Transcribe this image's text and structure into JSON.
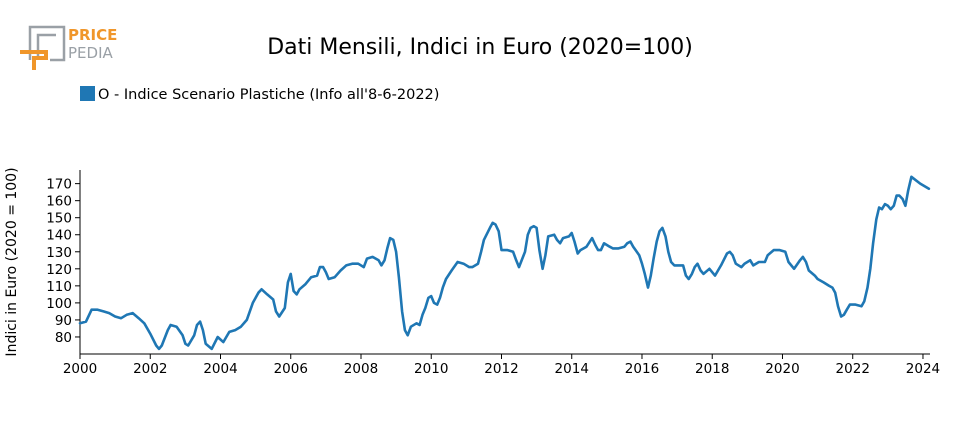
{
  "logo": {
    "line1": "PRICE",
    "line2": "PEDIA",
    "color_orange": "#f0962a",
    "color_gray": "#9aa0a6"
  },
  "chart_data": {
    "type": "line",
    "title": "Dati Mensili, Indici in Euro (2020=100)",
    "ylabel": "Indici in Euro (2020 = 100)",
    "xlabel": "",
    "legend": {
      "placement": "top-left"
    },
    "grid": false,
    "xlim": [
      2000,
      2024.2
    ],
    "ylim": [
      70,
      178
    ],
    "x_ticks": [
      2000,
      2002,
      2004,
      2006,
      2008,
      2010,
      2012,
      2014,
      2016,
      2018,
      2020,
      2022,
      2024
    ],
    "y_ticks": [
      80,
      90,
      100,
      110,
      120,
      130,
      140,
      150,
      160,
      170
    ],
    "series": [
      {
        "name": "O - Indice Scenario Plastiche (Info all'8-6-2022)",
        "color": "#1f77b4",
        "points": [
          [
            2000.0,
            88
          ],
          [
            2000.17,
            89
          ],
          [
            2000.33,
            96
          ],
          [
            2000.5,
            96
          ],
          [
            2000.67,
            95
          ],
          [
            2000.83,
            94
          ],
          [
            2001.0,
            92
          ],
          [
            2001.17,
            91
          ],
          [
            2001.33,
            93
          ],
          [
            2001.5,
            94
          ],
          [
            2001.67,
            91
          ],
          [
            2001.83,
            88
          ],
          [
            2002.0,
            82
          ],
          [
            2002.17,
            75
          ],
          [
            2002.25,
            73
          ],
          [
            2002.33,
            75
          ],
          [
            2002.5,
            84
          ],
          [
            2002.58,
            87
          ],
          [
            2002.75,
            86
          ],
          [
            2002.92,
            81
          ],
          [
            2003.0,
            76
          ],
          [
            2003.08,
            75
          ],
          [
            2003.25,
            81
          ],
          [
            2003.33,
            87
          ],
          [
            2003.42,
            89
          ],
          [
            2003.5,
            84
          ],
          [
            2003.58,
            76
          ],
          [
            2003.75,
            73
          ],
          [
            2003.92,
            80
          ],
          [
            2004.08,
            77
          ],
          [
            2004.25,
            83
          ],
          [
            2004.42,
            84
          ],
          [
            2004.58,
            86
          ],
          [
            2004.75,
            90
          ],
          [
            2004.92,
            100
          ],
          [
            2005.08,
            106
          ],
          [
            2005.17,
            108
          ],
          [
            2005.33,
            105
          ],
          [
            2005.5,
            102
          ],
          [
            2005.58,
            95
          ],
          [
            2005.67,
            92
          ],
          [
            2005.83,
            97
          ],
          [
            2005.92,
            112
          ],
          [
            2006.0,
            117
          ],
          [
            2006.08,
            107
          ],
          [
            2006.17,
            105
          ],
          [
            2006.25,
            108
          ],
          [
            2006.42,
            111
          ],
          [
            2006.58,
            115
          ],
          [
            2006.75,
            116
          ],
          [
            2006.83,
            121
          ],
          [
            2006.92,
            121
          ],
          [
            2007.0,
            118
          ],
          [
            2007.08,
            114
          ],
          [
            2007.25,
            115
          ],
          [
            2007.42,
            119
          ],
          [
            2007.58,
            122
          ],
          [
            2007.75,
            123
          ],
          [
            2007.92,
            123
          ],
          [
            2008.08,
            121
          ],
          [
            2008.17,
            126
          ],
          [
            2008.33,
            127
          ],
          [
            2008.5,
            125
          ],
          [
            2008.58,
            122
          ],
          [
            2008.67,
            125
          ],
          [
            2008.75,
            132
          ],
          [
            2008.83,
            138
          ],
          [
            2008.92,
            137
          ],
          [
            2009.0,
            130
          ],
          [
            2009.08,
            115
          ],
          [
            2009.17,
            95
          ],
          [
            2009.25,
            84
          ],
          [
            2009.33,
            81
          ],
          [
            2009.42,
            86
          ],
          [
            2009.58,
            88
          ],
          [
            2009.67,
            87
          ],
          [
            2009.75,
            93
          ],
          [
            2009.83,
            97
          ],
          [
            2009.92,
            103
          ],
          [
            2010.0,
            104
          ],
          [
            2010.08,
            100
          ],
          [
            2010.17,
            99
          ],
          [
            2010.25,
            103
          ],
          [
            2010.33,
            109
          ],
          [
            2010.42,
            114
          ],
          [
            2010.58,
            119
          ],
          [
            2010.75,
            124
          ],
          [
            2010.92,
            123
          ],
          [
            2011.08,
            121
          ],
          [
            2011.17,
            121
          ],
          [
            2011.33,
            123
          ],
          [
            2011.42,
            130
          ],
          [
            2011.5,
            137
          ],
          [
            2011.67,
            144
          ],
          [
            2011.75,
            147
          ],
          [
            2011.83,
            146
          ],
          [
            2011.92,
            142
          ],
          [
            2012.0,
            131
          ],
          [
            2012.17,
            131
          ],
          [
            2012.33,
            130
          ],
          [
            2012.42,
            125
          ],
          [
            2012.5,
            121
          ],
          [
            2012.67,
            130
          ],
          [
            2012.75,
            140
          ],
          [
            2012.83,
            144
          ],
          [
            2012.92,
            145
          ],
          [
            2013.0,
            144
          ],
          [
            2013.08,
            131
          ],
          [
            2013.17,
            120
          ],
          [
            2013.25,
            128
          ],
          [
            2013.33,
            139
          ],
          [
            2013.5,
            140
          ],
          [
            2013.58,
            137
          ],
          [
            2013.67,
            135
          ],
          [
            2013.75,
            138
          ],
          [
            2013.92,
            139
          ],
          [
            2014.0,
            141
          ],
          [
            2014.08,
            136
          ],
          [
            2014.17,
            129
          ],
          [
            2014.25,
            131
          ],
          [
            2014.42,
            133
          ],
          [
            2014.58,
            138
          ],
          [
            2014.67,
            134
          ],
          [
            2014.75,
            131
          ],
          [
            2014.83,
            131
          ],
          [
            2014.92,
            135
          ],
          [
            2015.08,
            133
          ],
          [
            2015.17,
            132
          ],
          [
            2015.33,
            132
          ],
          [
            2015.5,
            133
          ],
          [
            2015.58,
            135
          ],
          [
            2015.67,
            136
          ],
          [
            2015.75,
            133
          ],
          [
            2015.92,
            128
          ],
          [
            2016.0,
            123
          ],
          [
            2016.08,
            117
          ],
          [
            2016.17,
            109
          ],
          [
            2016.25,
            116
          ],
          [
            2016.33,
            126
          ],
          [
            2016.42,
            136
          ],
          [
            2016.5,
            142
          ],
          [
            2016.58,
            144
          ],
          [
            2016.67,
            139
          ],
          [
            2016.75,
            130
          ],
          [
            2016.83,
            124
          ],
          [
            2016.92,
            122
          ],
          [
            2017.17,
            122
          ],
          [
            2017.25,
            116
          ],
          [
            2017.33,
            114
          ],
          [
            2017.42,
            117
          ],
          [
            2017.5,
            121
          ],
          [
            2017.58,
            123
          ],
          [
            2017.67,
            119
          ],
          [
            2017.75,
            117
          ],
          [
            2017.92,
            120
          ],
          [
            2018.08,
            116
          ],
          [
            2018.25,
            122
          ],
          [
            2018.42,
            129
          ],
          [
            2018.5,
            130
          ],
          [
            2018.58,
            128
          ],
          [
            2018.67,
            123
          ],
          [
            2018.83,
            121
          ],
          [
            2018.92,
            123
          ],
          [
            2019.08,
            125
          ],
          [
            2019.17,
            122
          ],
          [
            2019.33,
            124
          ],
          [
            2019.5,
            124
          ],
          [
            2019.58,
            128
          ],
          [
            2019.75,
            131
          ],
          [
            2019.92,
            131
          ],
          [
            2020.08,
            130
          ],
          [
            2020.17,
            124
          ],
          [
            2020.33,
            120
          ],
          [
            2020.5,
            125
          ],
          [
            2020.58,
            127
          ],
          [
            2020.67,
            124
          ],
          [
            2020.75,
            119
          ],
          [
            2020.92,
            116
          ],
          [
            2021.0,
            114
          ],
          [
            2021.17,
            112
          ],
          [
            2021.33,
            110
          ],
          [
            2021.42,
            109
          ],
          [
            2021.5,
            106
          ],
          [
            2021.58,
            98
          ],
          [
            2021.67,
            92
          ],
          [
            2021.75,
            93
          ],
          [
            2021.83,
            96
          ],
          [
            2021.92,
            99
          ],
          [
            2022.08,
            99
          ],
          [
            2022.25,
            98
          ],
          [
            2022.33,
            101
          ],
          [
            2022.42,
            109
          ],
          [
            2022.5,
            120
          ],
          [
            2022.58,
            135
          ],
          [
            2022.67,
            149
          ],
          [
            2022.75,
            156
          ],
          [
            2022.83,
            155
          ],
          [
            2022.92,
            158
          ],
          [
            2023.0,
            157
          ],
          [
            2023.08,
            155
          ],
          [
            2023.17,
            157
          ],
          [
            2023.25,
            163
          ],
          [
            2023.33,
            163
          ],
          [
            2023.42,
            161
          ],
          [
            2023.5,
            157
          ],
          [
            2023.58,
            166
          ],
          [
            2023.67,
            174
          ],
          [
            2023.92,
            170
          ],
          [
            2024.17,
            167
          ]
        ]
      }
    ]
  }
}
